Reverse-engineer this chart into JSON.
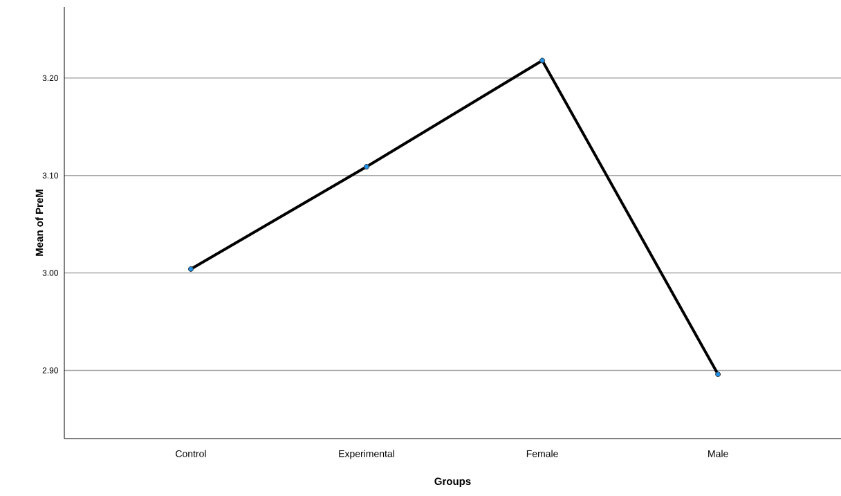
{
  "chart_data": {
    "type": "line",
    "xlabel": "Groups",
    "ylabel": "Mean of PreM",
    "categories": [
      "Control",
      "Experimental",
      "Female",
      "Male"
    ],
    "series": [
      {
        "color": "#000000",
        "colors": [
          "#1e90e6",
          "#1e90e6",
          "#1e90e6",
          "#1e90e6"
        ],
        "values": [
          3.004,
          3.109,
          3.218,
          2.896
        ]
      }
    ],
    "ylim": [
      2.83,
      3.273
    ],
    "yticks": [
      {
        "value": 2.9,
        "label": "2.90"
      },
      {
        "value": 3.0,
        "label": "3.00"
      },
      {
        "value": 3.1,
        "label": "3.10"
      },
      {
        "value": 3.2,
        "label": "3.20"
      }
    ],
    "grid": "y",
    "marker": "circle",
    "line_style": "solid"
  }
}
